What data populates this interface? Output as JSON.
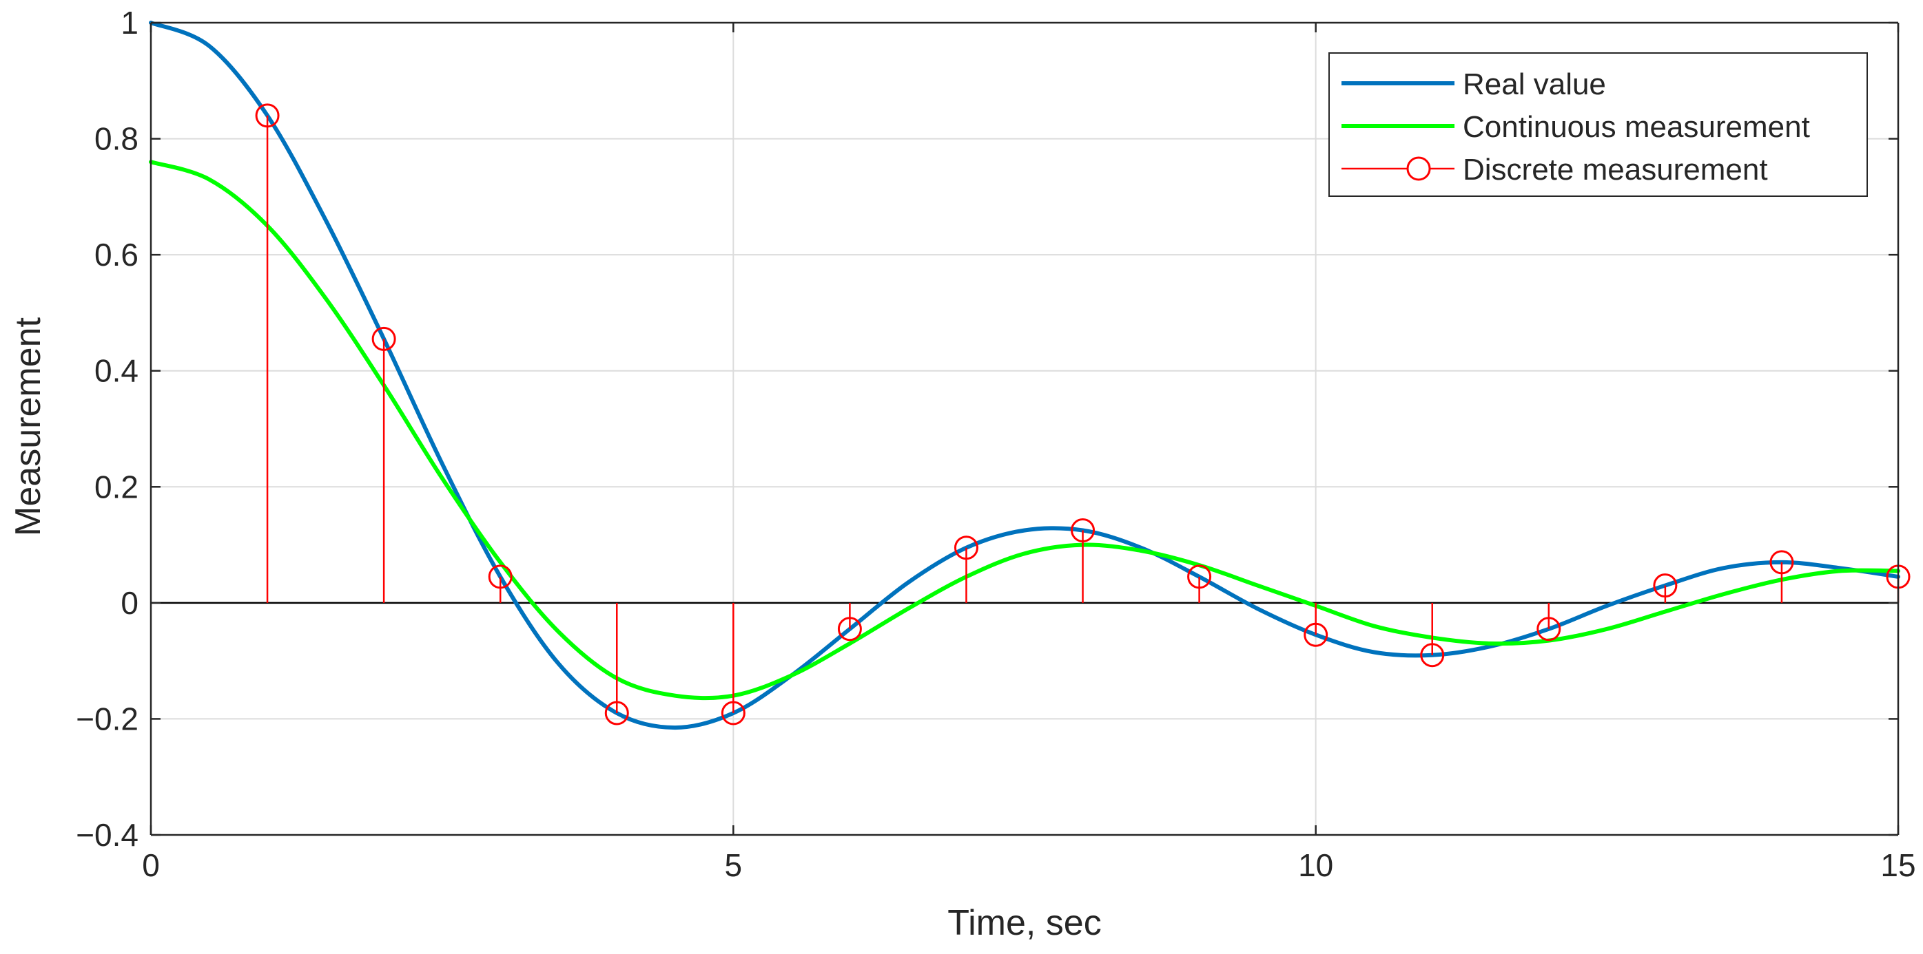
{
  "chart_data": {
    "type": "line",
    "title": "",
    "xlabel": "Time, sec",
    "ylabel": "Measurement",
    "xlim": [
      0,
      15
    ],
    "ylim": [
      -0.4,
      1
    ],
    "xticks": [
      0,
      5,
      10,
      15
    ],
    "xtick_labels": [
      "0",
      "5",
      "10",
      "15"
    ],
    "yticks": [
      -0.4,
      -0.2,
      0,
      0.2,
      0.4,
      0.6,
      0.8,
      1
    ],
    "ytick_labels": [
      "−0.4",
      "−0.2",
      "0",
      "0.2",
      "0.4",
      "0.6",
      "0.8",
      "1"
    ],
    "grid": true,
    "legend_position": "top-right",
    "series": [
      {
        "name": "Real value",
        "kind": "line",
        "color": "#0072BD",
        "x": [
          0,
          0.5,
          1,
          1.5,
          2,
          2.5,
          3,
          3.5,
          4,
          4.5,
          5,
          5.5,
          6,
          6.5,
          7,
          7.5,
          8,
          8.5,
          9,
          9.5,
          10,
          10.5,
          11,
          11.5,
          12,
          12.5,
          13,
          13.5,
          14,
          14.5,
          15
        ],
        "y": [
          1,
          0.96,
          0.84,
          0.66,
          0.455,
          0.24,
          0.045,
          -0.105,
          -0.19,
          -0.215,
          -0.19,
          -0.125,
          -0.045,
          0.035,
          0.095,
          0.125,
          0.125,
          0.095,
          0.045,
          -0.01,
          -0.055,
          -0.085,
          -0.09,
          -0.075,
          -0.045,
          -0.005,
          0.03,
          0.06,
          0.07,
          0.06,
          0.045
        ]
      },
      {
        "name": "Continuous measurement",
        "kind": "line",
        "color": "#00FF00",
        "x": [
          0,
          0.5,
          1,
          1.5,
          2,
          2.5,
          3,
          3.5,
          4,
          4.5,
          5,
          5.5,
          6,
          6.5,
          7,
          7.5,
          8,
          8.5,
          9,
          9.5,
          10,
          10.5,
          11,
          11.5,
          12,
          12.5,
          13,
          13.5,
          14,
          14.5,
          15
        ],
        "y": [
          0.76,
          0.73,
          0.65,
          0.525,
          0.375,
          0.215,
          0.07,
          -0.05,
          -0.13,
          -0.16,
          -0.16,
          -0.125,
          -0.07,
          -0.01,
          0.045,
          0.085,
          0.1,
          0.09,
          0.065,
          0.03,
          -0.005,
          -0.04,
          -0.06,
          -0.07,
          -0.065,
          -0.045,
          -0.015,
          0.015,
          0.04,
          0.055,
          0.055
        ]
      },
      {
        "name": "Discrete measurement",
        "kind": "stem",
        "color": "#FF0000",
        "x": [
          1,
          2,
          3,
          4,
          5,
          6,
          7,
          8,
          9,
          10,
          11,
          12,
          13,
          14,
          15
        ],
        "y": [
          0.84,
          0.455,
          0.045,
          -0.19,
          -0.19,
          -0.045,
          0.095,
          0.125,
          0.045,
          -0.055,
          -0.09,
          -0.045,
          0.03,
          0.07,
          0.045
        ]
      }
    ]
  }
}
